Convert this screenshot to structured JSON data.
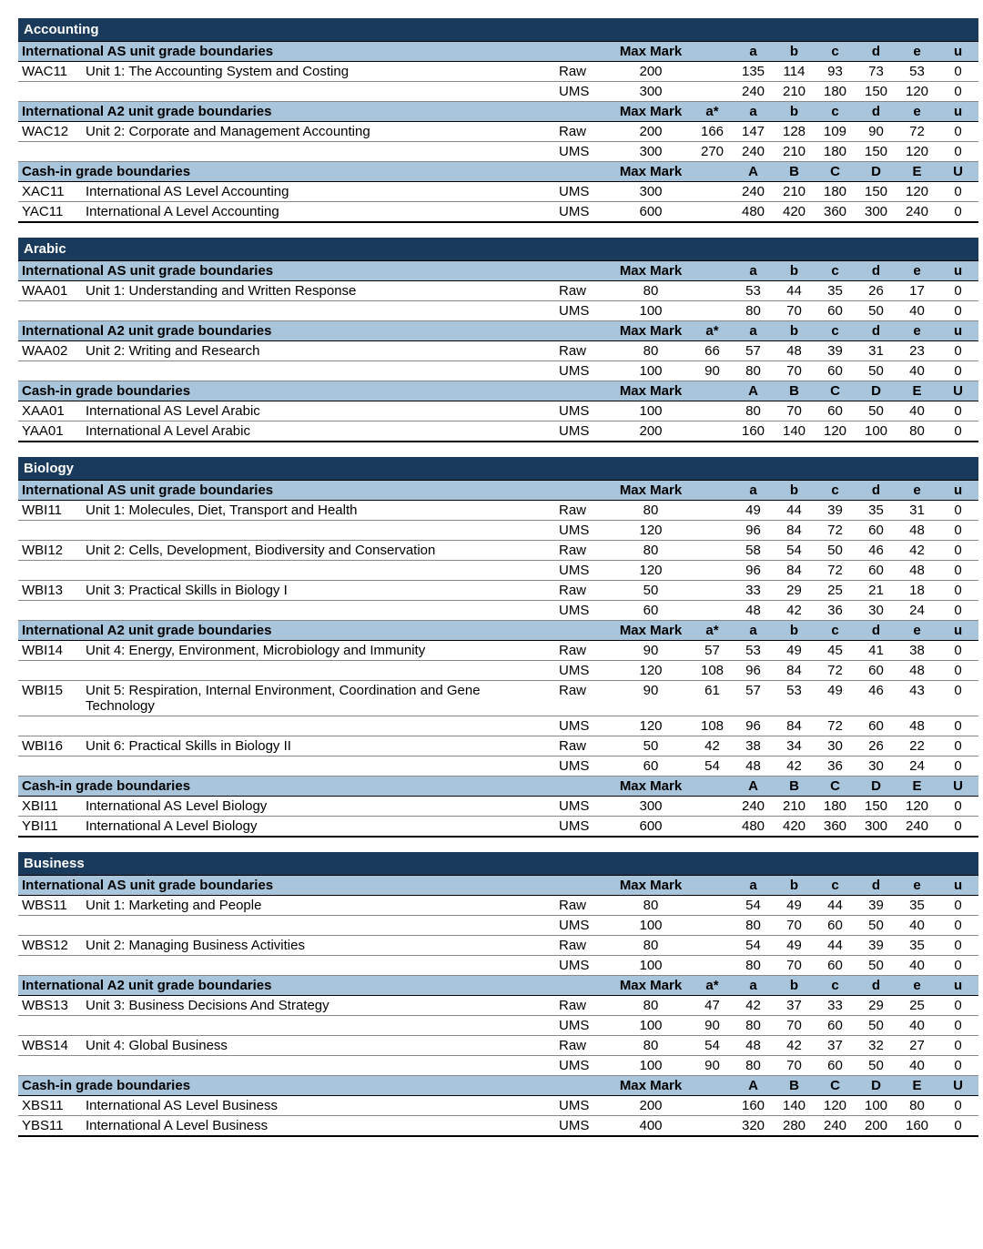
{
  "colors": {
    "subject_bg": "#1a3a5c",
    "subject_fg": "#ffffff",
    "section_bg": "#a8c5dc",
    "text": "#000000",
    "row_border": "#888888"
  },
  "labels": {
    "max_mark": "Max Mark",
    "raw": "Raw",
    "ums": "UMS"
  },
  "grade_headers": {
    "as": [
      "",
      "a",
      "b",
      "c",
      "d",
      "e",
      "u"
    ],
    "a2": [
      "a*",
      "a",
      "b",
      "c",
      "d",
      "e",
      "u"
    ],
    "cash": [
      "",
      "A",
      "B",
      "C",
      "D",
      "E",
      "U"
    ]
  },
  "subjects": [
    {
      "name": "Accounting",
      "sections": [
        {
          "title": "International AS unit grade boundaries",
          "header_type": "as",
          "units": [
            {
              "code": "WAC11",
              "desc": "Unit 1: The Accounting System and Costing",
              "rows": [
                {
                  "type": "Raw",
                  "max": "200",
                  "g": [
                    "",
                    "135",
                    "114",
                    "93",
                    "73",
                    "53",
                    "0"
                  ]
                },
                {
                  "type": "UMS",
                  "max": "300",
                  "g": [
                    "",
                    "240",
                    "210",
                    "180",
                    "150",
                    "120",
                    "0"
                  ]
                }
              ]
            }
          ]
        },
        {
          "title": "International A2 unit grade boundaries",
          "header_type": "a2",
          "units": [
            {
              "code": "WAC12",
              "desc": "Unit 2: Corporate and Management Accounting",
              "rows": [
                {
                  "type": "Raw",
                  "max": "200",
                  "g": [
                    "166",
                    "147",
                    "128",
                    "109",
                    "90",
                    "72",
                    "0"
                  ]
                },
                {
                  "type": "UMS",
                  "max": "300",
                  "g": [
                    "270",
                    "240",
                    "210",
                    "180",
                    "150",
                    "120",
                    "0"
                  ]
                }
              ]
            }
          ]
        },
        {
          "title": "Cash-in grade boundaries",
          "header_type": "cash",
          "units": [
            {
              "code": "XAC11",
              "desc": "International AS Level Accounting",
              "rows": [
                {
                  "type": "UMS",
                  "max": "300",
                  "g": [
                    "",
                    "240",
                    "210",
                    "180",
                    "150",
                    "120",
                    "0"
                  ]
                }
              ]
            },
            {
              "code": "YAC11",
              "desc": "International A Level Accounting",
              "rows": [
                {
                  "type": "UMS",
                  "max": "600",
                  "g": [
                    "",
                    "480",
                    "420",
                    "360",
                    "300",
                    "240",
                    "0"
                  ]
                }
              ]
            }
          ]
        }
      ]
    },
    {
      "name": "Arabic",
      "sections": [
        {
          "title": "International AS unit grade boundaries",
          "header_type": "as",
          "units": [
            {
              "code": "WAA01",
              "desc": "Unit 1: Understanding and Written Response",
              "rows": [
                {
                  "type": "Raw",
                  "max": "80",
                  "g": [
                    "",
                    "53",
                    "44",
                    "35",
                    "26",
                    "17",
                    "0"
                  ]
                },
                {
                  "type": "UMS",
                  "max": "100",
                  "g": [
                    "",
                    "80",
                    "70",
                    "60",
                    "50",
                    "40",
                    "0"
                  ]
                }
              ]
            }
          ]
        },
        {
          "title": "International A2 unit grade boundaries",
          "header_type": "a2",
          "units": [
            {
              "code": "WAA02",
              "desc": "Unit 2: Writing and Research",
              "rows": [
                {
                  "type": "Raw",
                  "max": "80",
                  "g": [
                    "66",
                    "57",
                    "48",
                    "39",
                    "31",
                    "23",
                    "0"
                  ]
                },
                {
                  "type": "UMS",
                  "max": "100",
                  "g": [
                    "90",
                    "80",
                    "70",
                    "60",
                    "50",
                    "40",
                    "0"
                  ]
                }
              ]
            }
          ]
        },
        {
          "title": "Cash-in grade boundaries",
          "header_type": "cash",
          "units": [
            {
              "code": "XAA01",
              "desc": "International AS Level Arabic",
              "rows": [
                {
                  "type": "UMS",
                  "max": "100",
                  "g": [
                    "",
                    "80",
                    "70",
                    "60",
                    "50",
                    "40",
                    "0"
                  ]
                }
              ]
            },
            {
              "code": "YAA01",
              "desc": "International A Level Arabic",
              "rows": [
                {
                  "type": "UMS",
                  "max": "200",
                  "g": [
                    "",
                    "160",
                    "140",
                    "120",
                    "100",
                    "80",
                    "0"
                  ]
                }
              ]
            }
          ]
        }
      ]
    },
    {
      "name": "Biology",
      "sections": [
        {
          "title": "International AS unit grade boundaries",
          "header_type": "as",
          "units": [
            {
              "code": "WBI11",
              "desc": "Unit 1: Molecules, Diet, Transport and Health",
              "rows": [
                {
                  "type": "Raw",
                  "max": "80",
                  "g": [
                    "",
                    "49",
                    "44",
                    "39",
                    "35",
                    "31",
                    "0"
                  ]
                },
                {
                  "type": "UMS",
                  "max": "120",
                  "g": [
                    "",
                    "96",
                    "84",
                    "72",
                    "60",
                    "48",
                    "0"
                  ]
                }
              ]
            },
            {
              "code": "WBI12",
              "desc": "Unit 2: Cells, Development, Biodiversity and Conservation",
              "rows": [
                {
                  "type": "Raw",
                  "max": "80",
                  "g": [
                    "",
                    "58",
                    "54",
                    "50",
                    "46",
                    "42",
                    "0"
                  ]
                },
                {
                  "type": "UMS",
                  "max": "120",
                  "g": [
                    "",
                    "96",
                    "84",
                    "72",
                    "60",
                    "48",
                    "0"
                  ]
                }
              ]
            },
            {
              "code": "WBI13",
              "desc": "Unit 3: Practical Skills in Biology I",
              "rows": [
                {
                  "type": "Raw",
                  "max": "50",
                  "g": [
                    "",
                    "33",
                    "29",
                    "25",
                    "21",
                    "18",
                    "0"
                  ]
                },
                {
                  "type": "UMS",
                  "max": "60",
                  "g": [
                    "",
                    "48",
                    "42",
                    "36",
                    "30",
                    "24",
                    "0"
                  ]
                }
              ]
            }
          ]
        },
        {
          "title": "International A2 unit grade boundaries",
          "header_type": "a2",
          "units": [
            {
              "code": "WBI14",
              "desc": "Unit 4: Energy, Environment, Microbiology and Immunity",
              "rows": [
                {
                  "type": "Raw",
                  "max": "90",
                  "g": [
                    "57",
                    "53",
                    "49",
                    "45",
                    "41",
                    "38",
                    "0"
                  ]
                },
                {
                  "type": "UMS",
                  "max": "120",
                  "g": [
                    "108",
                    "96",
                    "84",
                    "72",
                    "60",
                    "48",
                    "0"
                  ]
                }
              ]
            },
            {
              "code": "WBI15",
              "desc": "Unit 5: Respiration, Internal Environment, Coordination and Gene Technology",
              "rows": [
                {
                  "type": "Raw",
                  "max": "90",
                  "g": [
                    "61",
                    "57",
                    "53",
                    "49",
                    "46",
                    "43",
                    "0"
                  ]
                },
                {
                  "type": "UMS",
                  "max": "120",
                  "g": [
                    "108",
                    "96",
                    "84",
                    "72",
                    "60",
                    "48",
                    "0"
                  ]
                }
              ]
            },
            {
              "code": "WBI16",
              "desc": "Unit 6: Practical Skills in Biology II",
              "rows": [
                {
                  "type": "Raw",
                  "max": "50",
                  "g": [
                    "42",
                    "38",
                    "34",
                    "30",
                    "26",
                    "22",
                    "0"
                  ]
                },
                {
                  "type": "UMS",
                  "max": "60",
                  "g": [
                    "54",
                    "48",
                    "42",
                    "36",
                    "30",
                    "24",
                    "0"
                  ]
                }
              ]
            }
          ]
        },
        {
          "title": "Cash-in grade boundaries",
          "header_type": "cash",
          "units": [
            {
              "code": "XBI11",
              "desc": "International AS Level Biology",
              "rows": [
                {
                  "type": "UMS",
                  "max": "300",
                  "g": [
                    "",
                    "240",
                    "210",
                    "180",
                    "150",
                    "120",
                    "0"
                  ]
                }
              ]
            },
            {
              "code": "YBI11",
              "desc": "International A Level Biology",
              "rows": [
                {
                  "type": "UMS",
                  "max": "600",
                  "g": [
                    "",
                    "480",
                    "420",
                    "360",
                    "300",
                    "240",
                    "0"
                  ]
                }
              ]
            }
          ]
        }
      ]
    },
    {
      "name": "Business",
      "sections": [
        {
          "title": "International AS unit grade boundaries",
          "header_type": "as",
          "units": [
            {
              "code": "WBS11",
              "desc": "Unit 1: Marketing and People",
              "rows": [
                {
                  "type": "Raw",
                  "max": "80",
                  "g": [
                    "",
                    "54",
                    "49",
                    "44",
                    "39",
                    "35",
                    "0"
                  ]
                },
                {
                  "type": "UMS",
                  "max": "100",
                  "g": [
                    "",
                    "80",
                    "70",
                    "60",
                    "50",
                    "40",
                    "0"
                  ]
                }
              ]
            },
            {
              "code": "WBS12",
              "desc": "Unit 2: Managing Business Activities",
              "rows": [
                {
                  "type": "Raw",
                  "max": "80",
                  "g": [
                    "",
                    "54",
                    "49",
                    "44",
                    "39",
                    "35",
                    "0"
                  ]
                },
                {
                  "type": "UMS",
                  "max": "100",
                  "g": [
                    "",
                    "80",
                    "70",
                    "60",
                    "50",
                    "40",
                    "0"
                  ]
                }
              ]
            }
          ]
        },
        {
          "title": "International A2 unit grade boundaries",
          "header_type": "a2",
          "units": [
            {
              "code": "WBS13",
              "desc": "Unit 3: Business Decisions And Strategy",
              "rows": [
                {
                  "type": "Raw",
                  "max": "80",
                  "g": [
                    "47",
                    "42",
                    "37",
                    "33",
                    "29",
                    "25",
                    "0"
                  ]
                },
                {
                  "type": "UMS",
                  "max": "100",
                  "g": [
                    "90",
                    "80",
                    "70",
                    "60",
                    "50",
                    "40",
                    "0"
                  ]
                }
              ]
            },
            {
              "code": "WBS14",
              "desc": "Unit 4: Global Business",
              "rows": [
                {
                  "type": "Raw",
                  "max": "80",
                  "g": [
                    "54",
                    "48",
                    "42",
                    "37",
                    "32",
                    "27",
                    "0"
                  ]
                },
                {
                  "type": "UMS",
                  "max": "100",
                  "g": [
                    "90",
                    "80",
                    "70",
                    "60",
                    "50",
                    "40",
                    "0"
                  ]
                }
              ]
            }
          ]
        },
        {
          "title": "Cash-in grade boundaries",
          "header_type": "cash",
          "units": [
            {
              "code": "XBS11",
              "desc": "International AS Level Business",
              "rows": [
                {
                  "type": "UMS",
                  "max": "200",
                  "g": [
                    "",
                    "160",
                    "140",
                    "120",
                    "100",
                    "80",
                    "0"
                  ]
                }
              ]
            },
            {
              "code": "YBS11",
              "desc": "International A Level Business",
              "rows": [
                {
                  "type": "UMS",
                  "max": "400",
                  "g": [
                    "",
                    "320",
                    "280",
                    "240",
                    "200",
                    "160",
                    "0"
                  ]
                }
              ]
            }
          ]
        }
      ]
    }
  ]
}
